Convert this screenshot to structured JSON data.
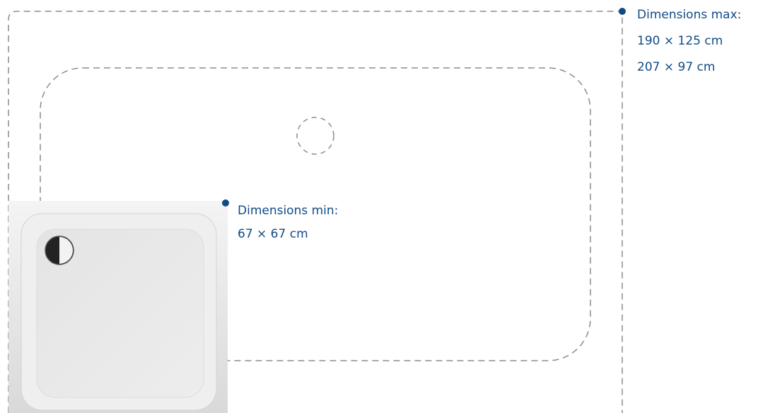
{
  "colors": {
    "accent": "#114b86",
    "dashed_outline": "#8c8c8c",
    "tray_surface": "#e9e9e9"
  },
  "max_dimensions": {
    "heading": "Dimensions max:",
    "sizes": [
      "190 × 125 cm",
      "207 × 97 cm"
    ]
  },
  "min_dimensions": {
    "heading": "Dimensions min:",
    "sizes": [
      "67 × 67 cm"
    ]
  },
  "icons": {
    "marker": "dot-icon",
    "drain": "drain-icon"
  }
}
